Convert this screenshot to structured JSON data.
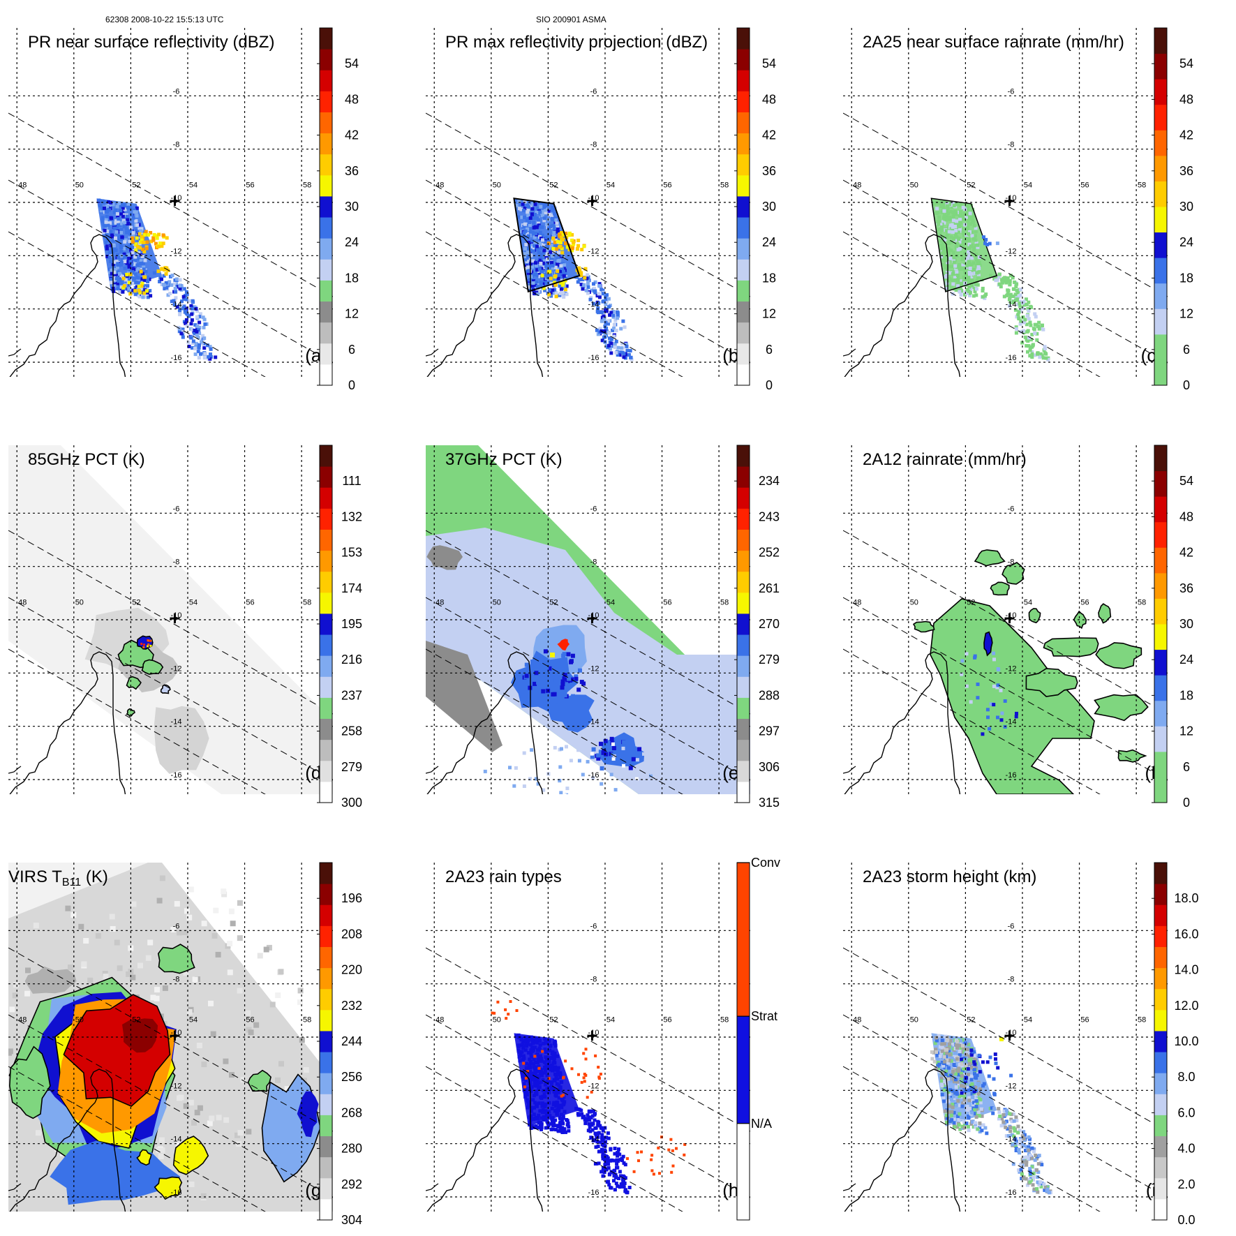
{
  "header": {
    "left": "62308 2008-10-22 15:5:13 UTC",
    "center": "SIO 200901 ASMA"
  },
  "chart_data": [
    {
      "type": "heatmap",
      "panel": "(a)",
      "title": "PR near surface reflectivity (dBZ)",
      "lon_ticks": [
        "48",
        "50",
        "52",
        "54",
        "56",
        "58"
      ],
      "lat_ticks": [
        "-6",
        "-8",
        "-10",
        "-12",
        "-14",
        "-16"
      ],
      "colorbar_labels": [
        "0",
        "6",
        "12",
        "18",
        "24",
        "30",
        "36",
        "42",
        "48",
        "54"
      ],
      "colors": [
        "#ffffff",
        "#e8e8e8",
        "#bdbdbd",
        "#8c8c8c",
        "#7fd67f",
        "#c3d0f2",
        "#7faaf0",
        "#3a72e8",
        "#1010d0",
        "#f6f600",
        "#ffcc00",
        "#ff9900",
        "#ff6600",
        "#ff2200",
        "#d40000",
        "#8b0000",
        "#4a1008"
      ],
      "swath": "pr",
      "field": "pr_refl"
    },
    {
      "type": "heatmap",
      "panel": "(b)",
      "title": "PR max reflectivity projection (dBZ)",
      "lon_ticks": [
        "48",
        "50",
        "52",
        "54",
        "56",
        "58"
      ],
      "lat_ticks": [
        "-6",
        "-8",
        "-10",
        "-12",
        "-14",
        "-16"
      ],
      "colorbar_labels": [
        "0",
        "6",
        "12",
        "18",
        "24",
        "30",
        "36",
        "42",
        "48",
        "54"
      ],
      "colors": [
        "#ffffff",
        "#e8e8e8",
        "#bdbdbd",
        "#8c8c8c",
        "#7fd67f",
        "#c3d0f2",
        "#7faaf0",
        "#3a72e8",
        "#1010d0",
        "#f6f600",
        "#ffcc00",
        "#ff9900",
        "#ff6600",
        "#ff2200",
        "#d40000",
        "#8b0000",
        "#4a1008"
      ],
      "swath": "pr",
      "field": "pr_max"
    },
    {
      "type": "heatmap",
      "panel": "(c)",
      "title": "2A25 near surface rainrate (mm/hr)",
      "lon_ticks": [
        "48",
        "50",
        "52",
        "54",
        "56",
        "58"
      ],
      "lat_ticks": [
        "-6",
        "-8",
        "-10",
        "-12",
        "-14",
        "-16"
      ],
      "colorbar_labels": [
        "0",
        "6",
        "12",
        "18",
        "24",
        "30",
        "36",
        "42",
        "48",
        "54"
      ],
      "colors": [
        "#7fd67f",
        "#7fd67f",
        "#c3d0f2",
        "#7faaf0",
        "#3a72e8",
        "#1010d0",
        "#f6f600",
        "#ffcc00",
        "#ff9900",
        "#ff6600",
        "#ff2200",
        "#d40000",
        "#8b0000",
        "#4a1008"
      ],
      "swath": "pr",
      "field": "rain25"
    },
    {
      "type": "heatmap",
      "panel": "(d)",
      "title": "85GHz PCT (K)",
      "lon_ticks": [
        "48",
        "50",
        "52",
        "54",
        "56",
        "58"
      ],
      "lat_ticks": [
        "-6",
        "-8",
        "-10",
        "-12",
        "-14",
        "-16"
      ],
      "colorbar_labels": [
        "300",
        "279",
        "258",
        "237",
        "216",
        "195",
        "174",
        "153",
        "132",
        "111"
      ],
      "colors": [
        "#ffffff",
        "#e0e0e0",
        "#bdbdbd",
        "#8c8c8c",
        "#7fd67f",
        "#c3d0f2",
        "#7faaf0",
        "#3a72e8",
        "#1010d0",
        "#f6f600",
        "#ffcc00",
        "#ff9900",
        "#ff6600",
        "#ff2200",
        "#d40000",
        "#8b0000",
        "#4a1008"
      ],
      "swath": "tmi",
      "field": "pct85"
    },
    {
      "type": "heatmap",
      "panel": "(e)",
      "title": "37GHz PCT (K)",
      "lon_ticks": [
        "48",
        "50",
        "52",
        "54",
        "56",
        "58"
      ],
      "lat_ticks": [
        "-6",
        "-8",
        "-10",
        "-12",
        "-14",
        "-16"
      ],
      "colorbar_labels": [
        "315",
        "306",
        "297",
        "288",
        "279",
        "270",
        "261",
        "252",
        "243",
        "234"
      ],
      "colors": [
        "#ffffff",
        "#d8d8d8",
        "#a8a8a8",
        "#8c8c8c",
        "#7fd67f",
        "#c3d0f2",
        "#7faaf0",
        "#3a72e8",
        "#1010d0",
        "#f6f600",
        "#ffcc00",
        "#ff9900",
        "#ff6600",
        "#ff2200",
        "#d40000",
        "#8b0000",
        "#4a1008"
      ],
      "swath": "tmi",
      "field": "pct37"
    },
    {
      "type": "heatmap",
      "panel": "(f)",
      "title": "2A12 rainrate (mm/hr)",
      "lon_ticks": [
        "48",
        "50",
        "52",
        "54",
        "56",
        "58"
      ],
      "lat_ticks": [
        "-6",
        "-8",
        "-10",
        "-12",
        "-14",
        "-16"
      ],
      "colorbar_labels": [
        "0",
        "6",
        "12",
        "18",
        "24",
        "30",
        "36",
        "42",
        "48",
        "54"
      ],
      "colors": [
        "#7fd67f",
        "#7fd67f",
        "#c3d0f2",
        "#7faaf0",
        "#3a72e8",
        "#1010d0",
        "#f6f600",
        "#ffcc00",
        "#ff9900",
        "#ff6600",
        "#ff2200",
        "#d40000",
        "#8b0000",
        "#4a1008"
      ],
      "swath": "tmi",
      "field": "rain12"
    },
    {
      "type": "heatmap",
      "panel": "(g)",
      "title_main": "VIRS T",
      "title_sub": "B11",
      "title_end": " (K)",
      "lon_ticks": [
        "48",
        "50",
        "52",
        "54",
        "56",
        "58"
      ],
      "lat_ticks": [
        "-6",
        "-8",
        "-10",
        "-12",
        "-14",
        "-16"
      ],
      "colorbar_labels": [
        "304",
        "292",
        "280",
        "268",
        "256",
        "244",
        "232",
        "220",
        "208",
        "196"
      ],
      "colors": [
        "#ffffff",
        "#e0e0e0",
        "#bdbdbd",
        "#8c8c8c",
        "#7fd67f",
        "#c3d0f2",
        "#7faaf0",
        "#3a72e8",
        "#1010d0",
        "#f6f600",
        "#ffcc00",
        "#ff9900",
        "#ff6600",
        "#ff2200",
        "#d40000",
        "#8b0000",
        "#4a1008"
      ],
      "swath": "virs",
      "field": "virs"
    },
    {
      "type": "heatmap",
      "panel": "(h)",
      "title": "2A23 rain types",
      "lon_ticks": [
        "48",
        "50",
        "52",
        "54",
        "56",
        "58"
      ],
      "lat_ticks": [
        "-6",
        "-8",
        "-10",
        "-12",
        "-14",
        "-16"
      ],
      "colorbar_labels": [
        "N/A",
        "Strat",
        "Conv"
      ],
      "colors": [
        "#ffffff",
        "#1010e0",
        "#ff4400"
      ],
      "swath": "pr",
      "field": "raintype"
    },
    {
      "type": "heatmap",
      "panel": "(i)",
      "title": "2A23 storm height (km)",
      "lon_ticks": [
        "48",
        "50",
        "52",
        "54",
        "56",
        "58"
      ],
      "lat_ticks": [
        "-6",
        "-8",
        "-10",
        "-12",
        "-14",
        "-16"
      ],
      "colorbar_labels": [
        "0.0",
        "2.0",
        "4.0",
        "6.0",
        "8.0",
        "10.0",
        "12.0",
        "14.0",
        "16.0",
        "18.0"
      ],
      "colors": [
        "#ffffff",
        "#e6e6e6",
        "#c8c8c8",
        "#a0a0a0",
        "#7fd67f",
        "#c3d0f2",
        "#7faaf0",
        "#3a72e8",
        "#1010d0",
        "#f6f600",
        "#ffcc00",
        "#ff9900",
        "#ff6600",
        "#ff2200",
        "#d40000",
        "#8b0000",
        "#4a1008"
      ],
      "swath": "pr",
      "field": "height"
    }
  ]
}
